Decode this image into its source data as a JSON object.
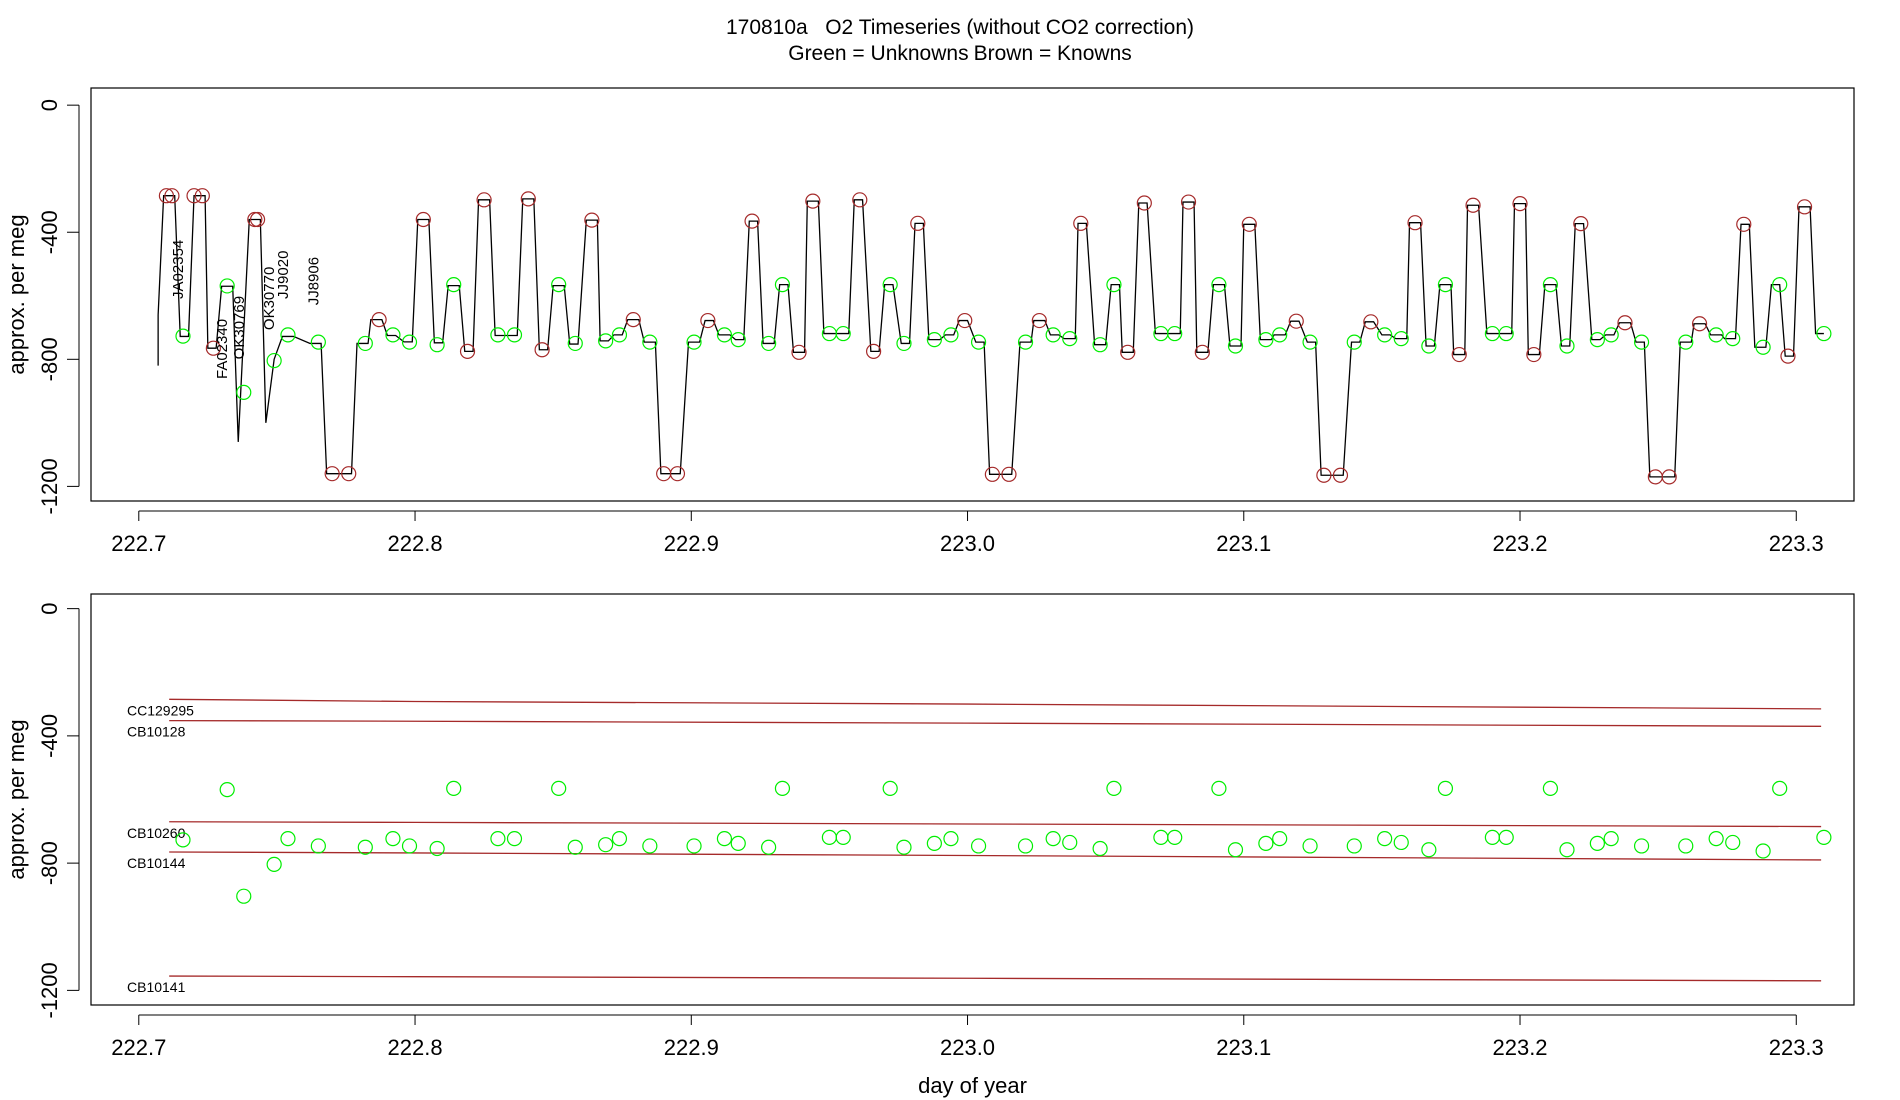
{
  "chart_data": [
    {
      "type": "line",
      "title": "170810a   O2 Timeseries (without CO2 correction)",
      "legend": "top",
      "y_label": "approx. per meg",
      "xlim": [
        222.6827,
        223.3209
      ],
      "ylim": [
        -1246,
        54
      ],
      "xticks": [
        222.7,
        222.8,
        222.9,
        {
          "value": 223,
          "label": "223.0"
        },
        223.1,
        223.2,
        223.3
      ],
      "yticks": [
        0,
        -400,
        -800,
        -1200
      ],
      "series": [
        {
          "color": "#000000",
          "x": [
            222.707,
            222.707,
            222.709,
            222.713,
            222.715,
            222.718,
            222.72,
            222.724,
            222.725,
            222.728,
            222.73,
            222.734,
            222.736,
            222.74,
            222.744,
            222.746,
            222.749,
            222.752,
            222.756,
            222.762,
            222.766,
            222.768,
            222.777,
            222.779,
            222.783,
            222.784,
            222.788,
            222.79,
            222.793,
            222.796,
            222.799,
            222.801,
            222.805,
            222.807,
            222.81,
            222.812,
            222.816,
            222.818,
            222.821,
            222.823,
            222.827,
            222.829,
            222.837,
            222.839,
            222.843,
            222.845,
            222.848,
            222.85,
            222.854,
            222.856,
            222.859,
            222.862,
            222.866,
            222.867,
            222.87,
            222.872,
            222.875,
            222.877,
            222.881,
            222.883,
            222.887,
            222.889,
            222.896,
            222.899,
            222.903,
            222.905,
            222.908,
            222.91,
            222.914,
            222.916,
            222.919,
            222.921,
            222.924,
            222.926,
            222.93,
            222.932,
            222.935,
            222.937,
            222.941,
            222.942,
            222.946,
            222.948,
            222.957,
            222.959,
            222.962,
            222.965,
            222.968,
            222.97,
            222.973,
            222.976,
            222.979,
            222.981,
            222.984,
            222.986,
            222.99,
            222.992,
            222.995,
            222.997,
            223.0,
            223.003,
            223.006,
            223.008,
            223.016,
            223.019,
            223.023,
            223.024,
            223.028,
            223.03,
            223.033,
            223.035,
            223.039,
            223.04,
            223.043,
            223.046,
            223.05,
            223.052,
            223.055,
            223.056,
            223.06,
            223.062,
            223.065,
            223.068,
            223.077,
            223.078,
            223.082,
            223.083,
            223.087,
            223.089,
            223.093,
            223.095,
            223.099,
            223.1,
            223.104,
            223.106,
            223.11,
            223.111,
            223.115,
            223.117,
            223.12,
            223.123,
            223.126,
            223.128,
            223.136,
            223.139,
            223.142,
            223.144,
            223.147,
            223.15,
            223.153,
            223.155,
            223.159,
            223.16,
            223.164,
            223.166,
            223.169,
            223.171,
            223.175,
            223.176,
            223.18,
            223.181,
            223.185,
            223.188,
            223.197,
            223.198,
            223.202,
            223.203,
            223.207,
            223.209,
            223.213,
            223.215,
            223.218,
            223.22,
            223.223,
            223.226,
            223.229,
            223.231,
            223.234,
            223.236,
            223.24,
            223.242,
            223.245,
            223.247,
            223.256,
            223.258,
            223.262,
            223.263,
            223.267,
            223.269,
            223.273,
            223.274,
            223.278,
            223.28,
            223.283,
            223.285,
            223.289,
            223.291,
            223.294,
            223.296,
            223.299,
            223.301,
            223.305,
            223.307,
            223.31
          ],
          "values": [
            -820,
            -660,
            -285,
            -285,
            -728,
            -728,
            -285,
            -285,
            -765,
            -765,
            -570,
            -570,
            -1060,
            -360,
            -360,
            -1000,
            -800,
            -728,
            -728,
            -750,
            -750,
            -1160,
            -1160,
            -750,
            -750,
            -675,
            -675,
            -725,
            -725,
            -745,
            -745,
            -360,
            -360,
            -748,
            -748,
            -568,
            -568,
            -775,
            -775,
            -298,
            -298,
            -725,
            -725,
            -295,
            -295,
            -770,
            -770,
            -568,
            -568,
            -752,
            -752,
            -362,
            -362,
            -742,
            -742,
            -723,
            -723,
            -675,
            -675,
            -746,
            -746,
            -1160,
            -1160,
            -746,
            -746,
            -678,
            -678,
            -723,
            -723,
            -738,
            -738,
            -365,
            -365,
            -750,
            -750,
            -565,
            -565,
            -778,
            -778,
            -302,
            -302,
            -719,
            -719,
            -298,
            -298,
            -775,
            -775,
            -565,
            -565,
            -750,
            -750,
            -372,
            -372,
            -738,
            -738,
            -723,
            -723,
            -678,
            -678,
            -746,
            -746,
            -1162,
            -1162,
            -746,
            -746,
            -678,
            -678,
            -723,
            -723,
            -735,
            -735,
            -372,
            -372,
            -754,
            -754,
            -565,
            -565,
            -778,
            -778,
            -308,
            -308,
            -719,
            -719,
            -305,
            -305,
            -778,
            -778,
            -565,
            -565,
            -758,
            -758,
            -375,
            -375,
            -738,
            -738,
            -723,
            -723,
            -680,
            -680,
            -746,
            -746,
            -1165,
            -1165,
            -746,
            -746,
            -682,
            -682,
            -723,
            -723,
            -735,
            -735,
            -370,
            -370,
            -758,
            -758,
            -565,
            -565,
            -785,
            -785,
            -315,
            -315,
            -719,
            -719,
            -310,
            -310,
            -785,
            -785,
            -565,
            -565,
            -758,
            -758,
            -373,
            -373,
            -738,
            -738,
            -723,
            -723,
            -685,
            -685,
            -746,
            -746,
            -1170,
            -1170,
            -746,
            -746,
            -688,
            -688,
            -723,
            -723,
            -735,
            -735,
            -375,
            -375,
            -762,
            -762,
            -565,
            -565,
            -790,
            -790,
            -320,
            -320,
            -719,
            -719
          ]
        },
        {
          "name": "Green = Unknowns",
          "type": "scatter",
          "color": "#00ee00",
          "x": [
            222.716,
            222.732,
            222.738,
            222.749,
            222.754,
            222.765,
            222.782,
            222.792,
            222.798,
            222.808,
            222.814,
            222.83,
            222.836,
            222.852,
            222.858,
            222.869,
            222.874,
            222.885,
            222.901,
            222.912,
            222.917,
            222.928,
            222.933,
            222.95,
            222.955,
            222.972,
            222.977,
            222.988,
            222.994,
            223.004,
            223.021,
            223.031,
            223.037,
            223.048,
            223.053,
            223.07,
            223.075,
            223.091,
            223.097,
            223.108,
            223.113,
            223.124,
            223.14,
            223.151,
            223.157,
            223.167,
            223.173,
            223.19,
            223.195,
            223.211,
            223.217,
            223.228,
            223.233,
            223.244,
            223.26,
            223.271,
            223.277,
            223.288,
            223.294,
            223.31
          ],
          "values": [
            -727,
            -569,
            -904,
            -804,
            -723,
            -746,
            -750,
            -723,
            -746,
            -754,
            -565,
            -723,
            -723,
            -565,
            -750,
            -742,
            -723,
            -746,
            -746,
            -723,
            -738,
            -750,
            -565,
            -719,
            -719,
            -565,
            -750,
            -738,
            -723,
            -746,
            -746,
            -723,
            -735,
            -754,
            -565,
            -719,
            -719,
            -565,
            -758,
            -738,
            -723,
            -746,
            -746,
            -723,
            -735,
            -758,
            -565,
            -719,
            -719,
            -565,
            -758,
            -738,
            -723,
            -746,
            -746,
            -723,
            -735,
            -762,
            -565,
            -719
          ]
        },
        {
          "name": "Brown = Knowns",
          "type": "scatter",
          "color": "#a52a2a",
          "x": [
            222.71,
            222.712,
            222.72,
            222.723,
            222.727,
            222.742,
            222.743,
            222.77,
            222.776,
            222.787,
            222.803,
            222.819,
            222.825,
            222.841,
            222.846,
            222.864,
            222.879,
            222.89,
            222.895,
            222.906,
            222.922,
            222.939,
            222.944,
            222.961,
            222.966,
            222.982,
            222.999,
            223.009,
            223.015,
            223.026,
            223.041,
            223.058,
            223.064,
            223.08,
            223.085,
            223.102,
            223.119,
            223.129,
            223.135,
            223.146,
            223.162,
            223.178,
            223.183,
            223.2,
            223.205,
            223.222,
            223.238,
            223.249,
            223.254,
            223.265,
            223.281,
            223.297,
            223.303
          ],
          "values": [
            -285,
            -285,
            -285,
            -285,
            -765,
            -360,
            -360,
            -1160,
            -1160,
            -675,
            -360,
            -775,
            -298,
            -295,
            -770,
            -362,
            -675,
            -1160,
            -1160,
            -678,
            -365,
            -778,
            -302,
            -298,
            -775,
            -372,
            -678,
            -1162,
            -1162,
            -678,
            -372,
            -778,
            -308,
            -305,
            -778,
            -375,
            -680,
            -1165,
            -1165,
            -682,
            -370,
            -785,
            -315,
            -310,
            -785,
            -373,
            -685,
            -1170,
            -1170,
            -688,
            -375,
            -790,
            -320
          ]
        }
      ],
      "annotations": [
        {
          "text": "JA02354",
          "x": 222.716,
          "y": -610,
          "color": "#00ee00"
        },
        {
          "text": "FA02340",
          "x": 222.732,
          "y": -862,
          "color": "#00ee00"
        },
        {
          "text": "OK30769",
          "x": 222.738,
          "y": -800,
          "color": "#00ee00"
        },
        {
          "text": "OK30770",
          "x": 222.749,
          "y": -708,
          "color": "#00ee00"
        },
        {
          "text": "JJ9020",
          "x": 222.754,
          "y": -610,
          "color": "#00ee00"
        },
        {
          "text": "JJ8906",
          "x": 222.765,
          "y": -630,
          "color": "#00ee00"
        }
      ]
    },
    {
      "type": "line",
      "y_label": "approx. per meg",
      "x_label": "day of year",
      "xlim": [
        222.6827,
        223.3209
      ],
      "ylim": [
        -1246,
        46
      ],
      "xticks": [
        222.7,
        222.8,
        222.9,
        {
          "value": 223,
          "label": "223.0"
        },
        223.1,
        223.2,
        223.3
      ],
      "yticks": [
        0,
        -400,
        -800,
        -1200
      ],
      "series": [
        {
          "name": "CC129295",
          "color": "#a52a2a",
          "x": [
            222.711,
            222.8,
            223.0,
            223.309
          ],
          "values": [
            -285,
            -292,
            -300,
            -315
          ]
        },
        {
          "name": "CB10128",
          "color": "#a52a2a",
          "x": [
            222.711,
            222.8,
            223.0,
            223.309
          ],
          "values": [
            -352,
            -354,
            -360,
            -370
          ]
        },
        {
          "name": "CB10260",
          "color": "#a52a2a",
          "x": [
            222.711,
            222.8,
            223.0,
            223.309
          ],
          "values": [
            -670,
            -672,
            -677,
            -685
          ]
        },
        {
          "name": "CB10144",
          "color": "#a52a2a",
          "x": [
            222.711,
            222.8,
            223.0,
            223.309
          ],
          "values": [
            -765,
            -768,
            -776,
            -790
          ]
        },
        {
          "name": "CB10141",
          "color": "#a52a2a",
          "x": [
            222.711,
            222.8,
            223.0,
            223.309
          ],
          "values": [
            -1155,
            -1157,
            -1162,
            -1170
          ]
        },
        {
          "type": "scatter",
          "color": "#00ee00",
          "x": [
            222.716,
            222.732,
            222.738,
            222.749,
            222.754,
            222.765,
            222.782,
            222.792,
            222.798,
            222.808,
            222.814,
            222.83,
            222.836,
            222.852,
            222.858,
            222.869,
            222.874,
            222.885,
            222.901,
            222.912,
            222.917,
            222.928,
            222.933,
            222.95,
            222.955,
            222.972,
            222.977,
            222.988,
            222.994,
            223.004,
            223.021,
            223.031,
            223.037,
            223.048,
            223.053,
            223.07,
            223.075,
            223.091,
            223.097,
            223.108,
            223.113,
            223.124,
            223.14,
            223.151,
            223.157,
            223.167,
            223.173,
            223.19,
            223.195,
            223.211,
            223.217,
            223.228,
            223.233,
            223.244,
            223.26,
            223.271,
            223.277,
            223.288,
            223.294,
            223.31
          ],
          "values": [
            -727,
            -569,
            -904,
            -804,
            -723,
            -746,
            -750,
            -723,
            -746,
            -754,
            -565,
            -723,
            -723,
            -565,
            -750,
            -742,
            -723,
            -746,
            -746,
            -723,
            -738,
            -750,
            -565,
            -719,
            -719,
            -565,
            -750,
            -738,
            -723,
            -746,
            -746,
            -723,
            -735,
            -754,
            -565,
            -719,
            -719,
            -565,
            -758,
            -738,
            -723,
            -746,
            -746,
            -723,
            -735,
            -758,
            -565,
            -719,
            -719,
            -565,
            -758,
            -738,
            -723,
            -746,
            -746,
            -723,
            -735,
            -762,
            -565,
            -719
          ]
        }
      ]
    }
  ]
}
